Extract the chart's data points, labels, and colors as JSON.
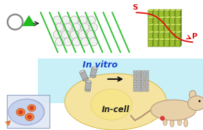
{
  "bg_color": "#ffffff",
  "invitro_text": "In vitro",
  "incell_text": "In-cell",
  "S_label": "S",
  "P_label": "P",
  "cell_fill": "#f5e3a0",
  "cell_edge": "#d4b840",
  "invitro_bg": "#b8eaf5",
  "crystal_green": "#9dc030",
  "crystal_mid": "#b8d840",
  "crystal_dark": "#6a8820",
  "crystal_top": "#d0e860",
  "arrow_color": "#111111",
  "red_color": "#dd1111",
  "green_color": "#22bb22",
  "orange_color": "#e07030",
  "circle_color": "#888888",
  "mouse_color": "#e8d0a8",
  "mouse_edge": "#b09070",
  "dish_color": "#d0d8f0",
  "cell_orange": "#f08040",
  "cell_orange_dark": "#c05020",
  "slide_color": "#e0e8f5",
  "slide_edge": "#8898bb",
  "grey_crystal": "#b0b0b0",
  "grey_crystal_top": "#d8d8d8",
  "grey_crystal_edge": "#808080"
}
